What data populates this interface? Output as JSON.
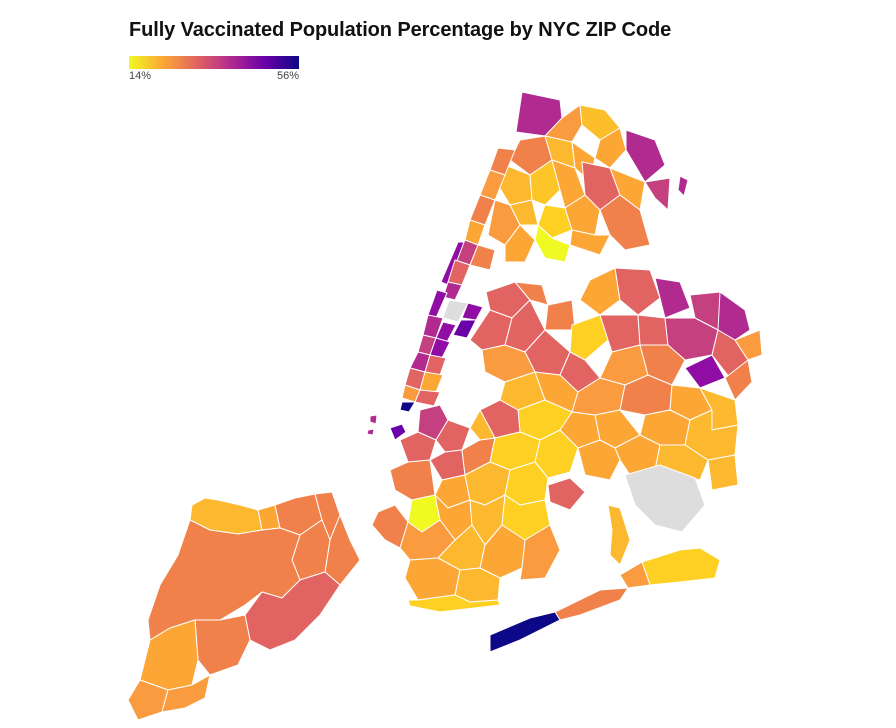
{
  "title": "Fully Vaccinated Population Percentage by NYC ZIP Code",
  "legend": {
    "min_label": "14%",
    "max_label": "56%",
    "colors": [
      "#f0f921",
      "#fca636",
      "#e16462",
      "#b12a90",
      "#6a00a8",
      "#0d0887"
    ]
  },
  "no_data_color": "#dddddd",
  "map": {
    "subject": "NYC ZIP code tabulation areas",
    "boroughs": [
      "Manhattan",
      "Bronx",
      "Queens",
      "Brooklyn",
      "Staten Island"
    ]
  }
}
